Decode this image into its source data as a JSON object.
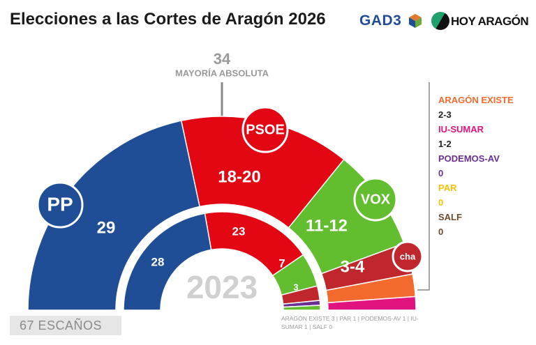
{
  "header": {
    "title": "Elecciones a las Cortes de Aragón 2026",
    "logo_gad3": "GAD3",
    "logo_hoy": "HOY ARAGÓN"
  },
  "majority": {
    "value": "34",
    "label": "MAYORÍA ABSOLUTA"
  },
  "seats_total": "67 ESCAÑOS",
  "footnote": "ARAGÓN EXISTE 3 | PAR 1 | PODEMOS-AV 1 | IU-SUMAR 1 | SALF 0",
  "legend": [
    {
      "party": "ARAGÓN EXISTE",
      "seats": "2-3",
      "color": "#f26a2e"
    },
    {
      "party": "IU-SUMAR",
      "seats": "1-2",
      "color": "#e0137f"
    },
    {
      "party": "PODEMOS-AV",
      "seats": "0",
      "color": "#6b2f91"
    },
    {
      "party": "PAR",
      "seats": "0",
      "color": "#f5c400"
    },
    {
      "party": "SALF",
      "seats": "0",
      "color": "#6b4a2e"
    }
  ],
  "chart_data": {
    "type": "hemicycle",
    "total_seats": 67,
    "majority": 34,
    "center_label": "2023",
    "outer_2026": [
      {
        "party": "PP",
        "label": "29",
        "value": 29,
        "color": "#1f4e96",
        "logo": "PP"
      },
      {
        "party": "PSOE",
        "label": "18-20",
        "value": 19,
        "color": "#e30613",
        "logo": "PSOE"
      },
      {
        "party": "VOX",
        "label": "11-12",
        "value": 11.5,
        "color": "#63be2f",
        "logo": "VOX"
      },
      {
        "party": "CHA",
        "label": "3-4",
        "value": 3.5,
        "color": "#c0272d",
        "logo": "cha"
      },
      {
        "party": "ARAGÓN EXISTE",
        "label": "",
        "value": 2.5,
        "color": "#f26a2e"
      },
      {
        "party": "IU-SUMAR",
        "label": "",
        "value": 1.5,
        "color": "#e0137f"
      }
    ],
    "inner_2023": [
      {
        "party": "PP",
        "label": "28",
        "value": 28,
        "color": "#1f4e96"
      },
      {
        "party": "PSOE",
        "label": "23",
        "value": 23,
        "color": "#e30613"
      },
      {
        "party": "VOX",
        "label": "7",
        "value": 7,
        "color": "#63be2f"
      },
      {
        "party": "CHA",
        "label": "3",
        "value": 3,
        "color": "#c0272d"
      },
      {
        "party": "PODEMOS-AV",
        "label": "",
        "value": 1,
        "color": "#6b2f91"
      },
      {
        "party": "OTHER",
        "label": "",
        "value": 1,
        "color": "#63be2f"
      }
    ]
  }
}
